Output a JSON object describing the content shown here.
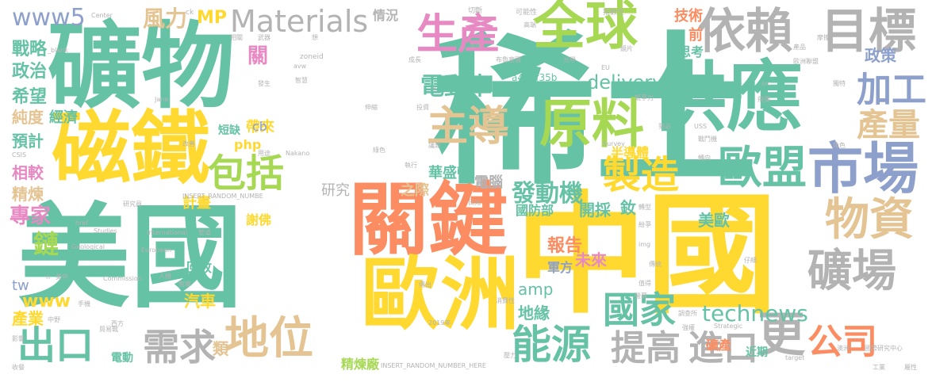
{
  "words": [
    {
      "text": "稀土",
      "color": "#66c2a5"
    },
    {
      "text": "中國",
      "color": "#ffd92f"
    },
    {
      "text": "礦物",
      "color": "#66c2a5"
    },
    {
      "text": "美國",
      "color": "#66c2a5"
    },
    {
      "text": "關鍵",
      "color": "#fc8d62"
    },
    {
      "text": "歐洲",
      "color": "#ffd92f"
    },
    {
      "text": "供應",
      "color": "#66c2a5"
    },
    {
      "text": "磁鐵",
      "color": "#ffd92f"
    },
    {
      "text": "全球",
      "color": "#a6d854"
    },
    {
      "text": "原料",
      "color": "#a6d854"
    },
    {
      "text": "依賴",
      "color": "#b3b3b3"
    },
    {
      "text": "目標",
      "color": "#b3b3b3"
    },
    {
      "text": "市場",
      "color": "#8da0cb"
    },
    {
      "text": "主導",
      "color": "#e5c494"
    },
    {
      "text": "生產",
      "color": "#e78ac3"
    },
    {
      "text": "Materials",
      "color": "#b3b3b3"
    },
    {
      "text": "歐盟",
      "color": "#66c2a5"
    },
    {
      "text": "地位",
      "color": "#e5c494"
    },
    {
      "text": "能源",
      "color": "#66c2a5"
    },
    {
      "text": "礦場",
      "color": "#b3b3b3"
    },
    {
      "text": "物資",
      "color": "#e5c494"
    },
    {
      "text": "製造",
      "color": "#ffd92f"
    },
    {
      "text": "包括",
      "color": "#a6d854"
    },
    {
      "text": "需求",
      "color": "#b3b3b3"
    },
    {
      "text": "出口",
      "color": "#66c2a5"
    },
    {
      "text": "國家",
      "color": "#66c2a5"
    },
    {
      "text": "提高",
      "color": "#b3b3b3"
    },
    {
      "text": "進口",
      "color": "#b3b3b3"
    },
    {
      "text": "更",
      "color": "#b3b3b3"
    },
    {
      "text": "公司",
      "color": "#fc8d62"
    },
    {
      "text": "technews",
      "color": "#66c2a5"
    },
    {
      "text": "加工",
      "color": "#8da0cb"
    },
    {
      "text": "產量",
      "color": "#e5c494"
    },
    {
      "text": "電動車",
      "color": "#66c2a5"
    },
    {
      "text": "delivery",
      "color": "#66c2a5"
    },
    {
      "text": "發動機",
      "color": "#66c2a5"
    },
    {
      "text": "www5",
      "color": "#8da0cb"
    },
    {
      "text": "風力",
      "color": "#e5c494"
    },
    {
      "text": "MP",
      "color": "#ffd92f"
    },
    {
      "text": "戰略",
      "color": "#66c2a5"
    },
    {
      "text": "政治",
      "color": "#66c2a5"
    },
    {
      "text": "希望",
      "color": "#66c2a5"
    },
    {
      "text": "純度",
      "color": "#e5c494"
    },
    {
      "text": "經濟",
      "color": "#66c2a5"
    },
    {
      "text": "預計",
      "color": "#66c2a5"
    },
    {
      "text": "相較",
      "color": "#e78ac3"
    },
    {
      "text": "精煉",
      "color": "#e5c494"
    },
    {
      "text": "專家",
      "color": "#e78ac3"
    },
    {
      "text": "鏈",
      "color": "#a6d854"
    },
    {
      "text": "www",
      "color": "#ffd92f"
    },
    {
      "text": "tw",
      "color": "#8da0cb"
    },
    {
      "text": "產業",
      "color": "#ffd92f"
    },
    {
      "text": "情況",
      "color": "#b3b3b3"
    },
    {
      "text": "關",
      "color": "#e78ac3"
    },
    {
      "text": "帶來",
      "color": "#ffd92f"
    },
    {
      "text": "php",
      "color": "#ffd92f"
    },
    {
      "text": "cb",
      "color": "#8da0cb"
    },
    {
      "text": "短缺",
      "color": "#66c2a5"
    },
    {
      "text": "研究",
      "color": "#b3b3b3"
    },
    {
      "text": "之際",
      "color": "#e5c494"
    },
    {
      "text": "電腦",
      "color": "#b3b3b3"
    },
    {
      "text": "計畫",
      "color": "#ffd92f"
    },
    {
      "text": "謝佛",
      "color": "#ffd92f"
    },
    {
      "text": "華盛頓",
      "color": "#66c2a5"
    },
    {
      "text": "半導體",
      "color": "#ffd92f"
    },
    {
      "text": "國防部",
      "color": "#66c2a5"
    },
    {
      "text": "開採",
      "color": "#66c2a5"
    },
    {
      "text": "釹",
      "color": "#66c2a5"
    },
    {
      "text": "amp",
      "color": "#66c2a5"
    },
    {
      "text": "報告",
      "color": "#fc8d62"
    },
    {
      "text": "未來",
      "color": "#e78ac3"
    },
    {
      "text": "地緣",
      "color": "#66c2a5"
    },
    {
      "text": "軍方",
      "color": "#8da0cb"
    },
    {
      "text": "美歐",
      "color": "#66c2a5"
    },
    {
      "text": "汽車",
      "color": "#ffd92f"
    },
    {
      "text": "類",
      "color": "#e5c494"
    },
    {
      "text": "回收",
      "color": "#66c2a5"
    },
    {
      "text": "精煉廠",
      "color": "#a6d854"
    },
    {
      "text": "礦產",
      "color": "#fc8d62"
    },
    {
      "text": "近期",
      "color": "#66c2a5"
    },
    {
      "text": "技術",
      "color": "#fc8d62"
    },
    {
      "text": "前",
      "color": "#fc8d62"
    },
    {
      "text": "思考",
      "color": "#66c2a5"
    },
    {
      "text": "政策",
      "color": "#8da0cb"
    },
    {
      "text": "a4b3f35b",
      "color": "#66c2a5"
    },
    {
      "text": "電動",
      "color": "#66c2a5"
    },
    {
      "text": "切斷",
      "color": "#b3b3b3"
    },
    {
      "text": "可能性",
      "color": "#b3b3b3"
    },
    {
      "text": "指數性",
      "color": "#b3b3b3"
    },
    {
      "text": "Center",
      "color": "#b3b3b3"
    },
    {
      "text": "ck",
      "color": "#b3b3b3"
    },
    {
      "text": "相關",
      "color": "#b3b3b3"
    },
    {
      "text": "武器",
      "color": "#b3b3b3"
    },
    {
      "text": "想",
      "color": "#b3b3b3"
    },
    {
      "text": "zoneid",
      "color": "#b3b3b3"
    },
    {
      "text": "去年",
      "color": "#b3b3b3"
    },
    {
      "text": "高端",
      "color": "#b3b3b3"
    },
    {
      "text": "鏡片",
      "color": "#b3b3b3"
    },
    {
      "text": "歐洲聯盟",
      "color": "#b3b3b3"
    },
    {
      "text": "產品",
      "color": "#b3b3b3"
    },
    {
      "text": "摩擦",
      "color": "#b3b3b3"
    },
    {
      "text": "獨特",
      "color": "#b3b3b3"
    },
    {
      "text": "_blank",
      "color": "#b3b3b3"
    },
    {
      "text": "avw",
      "color": "#b3b3b3"
    },
    {
      "text": "成長",
      "color": "#b3b3b3"
    },
    {
      "text": "布魯塞爾",
      "color": "#b3b3b3"
    },
    {
      "text": "光學",
      "color": "#b3b3b3"
    },
    {
      "text": "EU",
      "color": "#b3b3b3"
    },
    {
      "text": "src",
      "color": "#b3b3b3"
    },
    {
      "text": "Jane",
      "color": "#b3b3b3"
    },
    {
      "text": "發生",
      "color": "#b3b3b3"
    },
    {
      "text": "智慧",
      "color": "#b3b3b3"
    },
    {
      "text": "伸縮",
      "color": "#b3b3b3"
    },
    {
      "text": "投資",
      "color": "#b3b3b3"
    },
    {
      "text": "競爭力",
      "color": "#b3b3b3"
    },
    {
      "text": "USS",
      "color": "#b3b3b3"
    },
    {
      "text": "CSIS",
      "color": "#b3b3b3"
    },
    {
      "text": "改善",
      "color": "#b3b3b3"
    },
    {
      "text": "用途",
      "color": "#b3b3b3"
    },
    {
      "text": "Nakano",
      "color": "#b3b3b3"
    },
    {
      "text": "議題",
      "color": "#b3b3b3"
    },
    {
      "text": "Survey",
      "color": "#b3b3b3"
    },
    {
      "text": "戰鬥機",
      "color": "#b3b3b3"
    },
    {
      "text": "綠色",
      "color": "#b3b3b3"
    },
    {
      "text": "執行",
      "color": "#b3b3b3"
    },
    {
      "text": "INSERT_RANDOM_NUMBE",
      "color": "#b3b3b3"
    },
    {
      "text": "研究員",
      "color": "#b3b3b3"
    },
    {
      "text": "Studies",
      "color": "#b3b3b3"
    },
    {
      "text": "International",
      "color": "#b3b3b3"
    },
    {
      "text": "Geological",
      "color": "#b3b3b3"
    },
    {
      "text": "European",
      "color": "#b3b3b3"
    },
    {
      "text": "href",
      "color": "#b3b3b3"
    },
    {
      "text": "管道",
      "color": "#b3b3b3"
    },
    {
      "text": "n",
      "color": "#b3b3b3"
    },
    {
      "text": "美中",
      "color": "#b3b3b3"
    },
    {
      "text": "Commission",
      "color": "#b3b3b3"
    },
    {
      "text": "人機",
      "color": "#b3b3b3"
    },
    {
      "text": "智庫",
      "color": "#b3b3b3"
    },
    {
      "text": "傳出",
      "color": "#b3b3b3"
    },
    {
      "text": "消費性",
      "color": "#b3b3b3"
    },
    {
      "text": "2019年",
      "color": "#b3b3b3"
    },
    {
      "text": "西方",
      "color": "#b3b3b3"
    },
    {
      "text": "INSERT_RANDOM_NUMBER_HERE",
      "color": "#b3b3b3"
    },
    {
      "text": "貿易戰",
      "color": "#b3b3b3"
    },
    {
      "text": "影響",
      "color": "#b3b3b3"
    },
    {
      "text": "收餐",
      "color": "#b3b3b3"
    },
    {
      "text": "中野",
      "color": "#b3b3b3"
    },
    {
      "text": "手機",
      "color": "#b3b3b3"
    },
    {
      "text": "壓力",
      "color": "#b3b3b3"
    },
    {
      "text": "強權",
      "color": "#b3b3b3"
    },
    {
      "text": "Strategic",
      "color": "#b3b3b3"
    },
    {
      "text": "澳洲",
      "color": "#b3b3b3"
    },
    {
      "text": "國際研究中心",
      "color": "#b3b3b3"
    },
    {
      "text": "target",
      "color": "#b3b3b3"
    },
    {
      "text": "工業",
      "color": "#b3b3b3"
    },
    {
      "text": "屬性",
      "color": "#b3b3b3"
    },
    {
      "text": "調查所",
      "color": "#b3b3b3"
    },
    {
      "text": "傳統",
      "color": "#b3b3b3"
    },
    {
      "text": "值得",
      "color": "#b3b3b3"
    },
    {
      "text": "img",
      "color": "#b3b3b3"
    },
    {
      "text": "轉型",
      "color": "#b3b3b3"
    },
    {
      "text": "紛爭",
      "color": "#b3b3b3"
    },
    {
      "text": "日光",
      "color": "#b3b3b3"
    },
    {
      "text": "螢幕",
      "color": "#b3b3b3"
    },
    {
      "text": "仔細",
      "color": "#b3b3b3"
    },
    {
      "text": "角色",
      "color": "#b3b3b3"
    },
    {
      "text": "轉向",
      "color": "#b3b3b3"
    },
    {
      "text": "勢必",
      "color": "#b3b3b3"
    },
    {
      "text": "飛彈",
      "color": "#b3b3b3"
    },
    {
      "text": "a",
      "color": "#b3b3b3"
    }
  ]
}
